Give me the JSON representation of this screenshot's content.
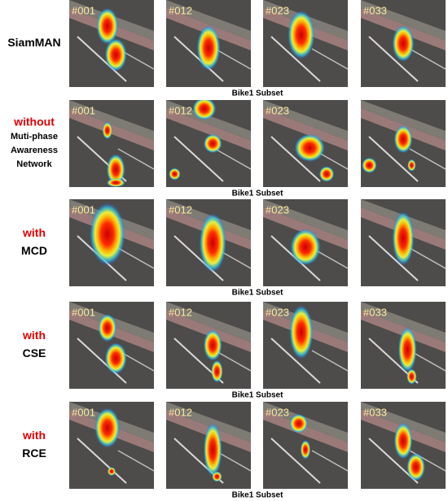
{
  "rows": [
    {
      "label": [
        {
          "text": "SiamMAN",
          "color": "#000000"
        }
      ],
      "frames": [
        "#001",
        "#012",
        "#023",
        "#033"
      ],
      "caption": "Bike1 Subset"
    },
    {
      "label": [
        {
          "text": "without",
          "color": "#e00000"
        },
        {
          "text": "Muti-phase",
          "color": "#000000"
        },
        {
          "text": "Awareness",
          "color": "#000000"
        },
        {
          "text": "Network",
          "color": "#000000"
        }
      ],
      "frames": [
        "#001",
        "#012",
        "#023",
        null
      ],
      "caption": "Bike1 Subset"
    },
    {
      "label": [
        {
          "text": "with",
          "color": "#e00000"
        },
        {
          "text": "MCD",
          "color": "#000000"
        }
      ],
      "frames": [
        "#001",
        "#012",
        "#023",
        null
      ],
      "caption": "Bike1 Subset"
    },
    {
      "label": [
        {
          "text": "with",
          "color": "#e00000"
        },
        {
          "text": "CSE",
          "color": "#000000"
        }
      ],
      "frames": [
        "#001",
        "#012",
        "#023",
        "#033"
      ],
      "caption": "Bike1 Subset"
    },
    {
      "label": [
        {
          "text": "with",
          "color": "#e00000"
        },
        {
          "text": "RCE",
          "color": "#000000"
        }
      ],
      "frames": [
        "#001",
        "#012",
        "#023",
        "#033"
      ],
      "caption": "Bike1 Subset"
    }
  ]
}
